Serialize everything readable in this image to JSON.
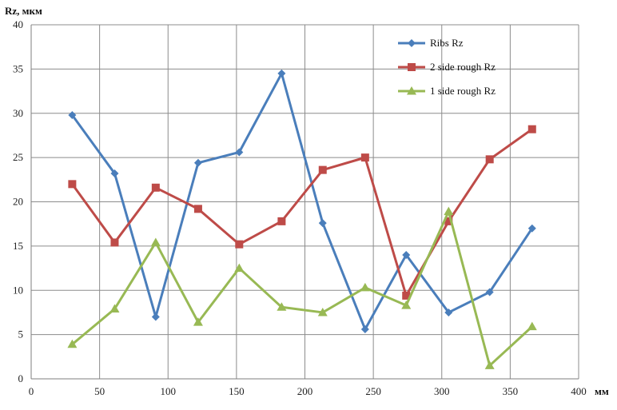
{
  "chart_data": {
    "type": "line",
    "ylabel": "Rz, мкм",
    "xlabel": "мм",
    "xlim": [
      0,
      400
    ],
    "ylim": [
      0,
      40
    ],
    "xticks": [
      0,
      50,
      100,
      150,
      200,
      250,
      300,
      350,
      400
    ],
    "yticks": [
      0,
      5,
      10,
      15,
      20,
      25,
      30,
      35,
      40
    ],
    "grid": true,
    "legend_position": "top-right",
    "x": [
      30,
      61,
      91,
      122,
      152,
      183,
      213,
      244,
      274,
      305,
      335,
      366
    ],
    "series": [
      {
        "name": "Ribs Rz",
        "color": "#4a7ebb",
        "marker": "diamond",
        "values": [
          29.8,
          23.2,
          7.0,
          24.4,
          25.6,
          34.5,
          17.6,
          5.6,
          14.0,
          7.5,
          9.8,
          17.0
        ]
      },
      {
        "name": "2 side rough Rz",
        "color": "#be4b48",
        "marker": "square",
        "values": [
          22.0,
          15.4,
          21.6,
          19.2,
          15.2,
          17.8,
          23.6,
          25.0,
          9.4,
          17.8,
          24.8,
          28.2
        ]
      },
      {
        "name": "1 side rough Rz",
        "color": "#98b954",
        "marker": "triangle",
        "values": [
          3.9,
          7.9,
          15.4,
          6.4,
          12.5,
          8.1,
          7.5,
          10.3,
          8.3,
          18.9,
          1.5,
          5.9
        ]
      }
    ]
  }
}
